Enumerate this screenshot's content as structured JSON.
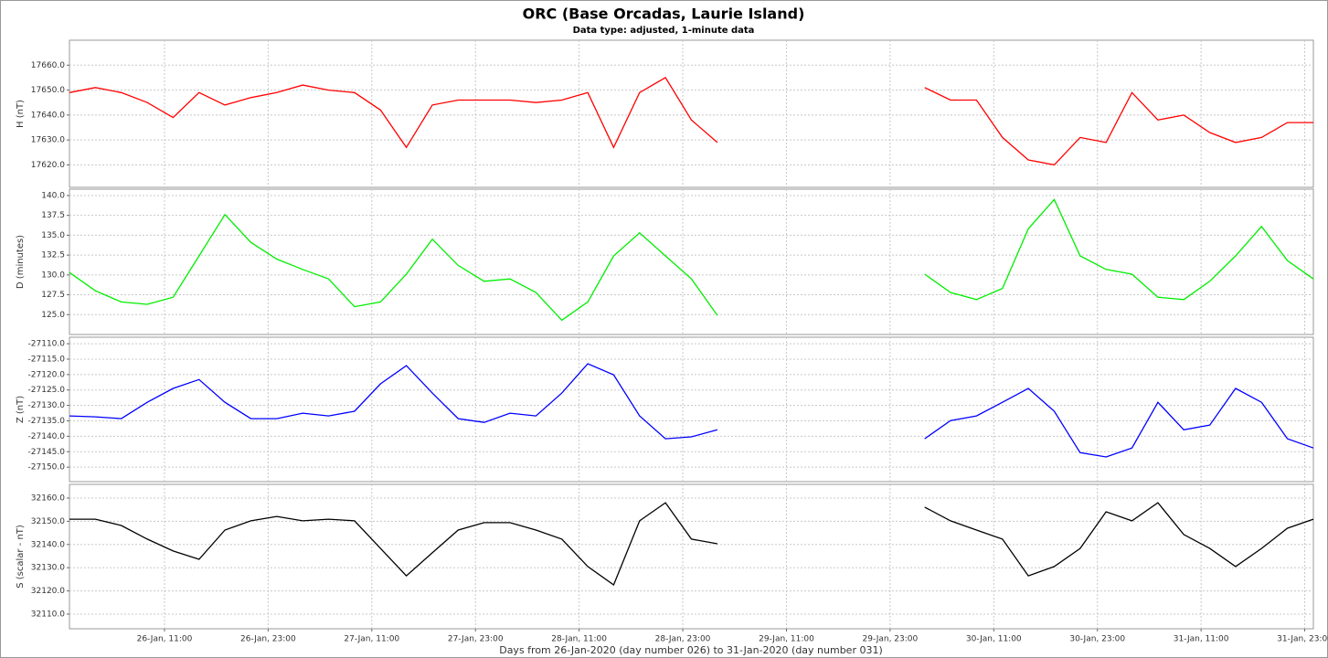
{
  "chart_data": {
    "type": "line",
    "title": "ORC (Base Orcadas, Laurie Island)",
    "subtitle": "Data type: adjusted, 1-minute data",
    "x_label": "Days from 26-Jan-2020 (day number 026) to 31-Jan-2020 (day number 031)",
    "grid": true,
    "x": [
      0,
      3,
      6,
      9,
      12,
      15,
      18,
      21,
      24,
      27,
      30,
      33,
      36,
      39,
      42,
      45,
      48,
      51,
      54,
      57,
      60,
      63,
      66,
      69,
      72,
      75,
      78,
      81,
      84,
      87,
      90,
      93,
      96,
      99,
      102,
      105,
      108,
      111,
      114,
      117,
      120,
      123,
      126,
      129,
      132,
      135,
      138,
      141,
      144
    ],
    "xlim": [
      0,
      144
    ],
    "xticks": [
      {
        "value": 11,
        "label": "26-Jan, 11:00"
      },
      {
        "value": 23,
        "label": "26-Jan, 23:00"
      },
      {
        "value": 35,
        "label": "27-Jan, 11:00"
      },
      {
        "value": 47,
        "label": "27-Jan, 23:00"
      },
      {
        "value": 59,
        "label": "28-Jan, 11:00"
      },
      {
        "value": 71,
        "label": "28-Jan, 23:00"
      },
      {
        "value": 83,
        "label": "29-Jan, 11:00"
      },
      {
        "value": 95,
        "label": "29-Jan, 23:00"
      },
      {
        "value": 107,
        "label": "30-Jan, 11:00"
      },
      {
        "value": 119,
        "label": "30-Jan, 23:00"
      },
      {
        "value": 131,
        "label": "31-Jan, 11:00"
      },
      {
        "value": 143,
        "label": "31-Jan, 23:00"
      }
    ],
    "panels": [
      {
        "y_label": "H (nT)",
        "color": "#ff0000",
        "ylim": [
          17611,
          17670
        ],
        "yticks": [
          {
            "value": 17620,
            "label": "17620.0"
          },
          {
            "value": 17630,
            "label": "17630.0"
          },
          {
            "value": 17640,
            "label": "17640.0"
          },
          {
            "value": 17650,
            "label": "17650.0"
          },
          {
            "value": 17660,
            "label": "17660.0"
          }
        ],
        "values": [
          17649,
          17651,
          17649,
          17645,
          17639,
          17649,
          17644,
          17647,
          17649,
          17652,
          17650,
          17649,
          17642,
          17627,
          17644,
          17646,
          17646,
          17646,
          17645,
          17646,
          17649,
          17627,
          17649,
          17655,
          17638,
          17629,
          null,
          null,
          null,
          null,
          null,
          null,
          null,
          17651,
          17646,
          17646,
          17631,
          17622,
          17620,
          17631,
          17629,
          17649,
          17638,
          17640,
          17633,
          17629,
          17631,
          17637,
          17637
        ]
      },
      {
        "y_label": "D (minutes)",
        "color": "#00ee00",
        "ylim": [
          122.5,
          140.8
        ],
        "yticks": [
          {
            "value": 125,
            "label": "125.0"
          },
          127.5,
          {
            "value": 130,
            "label": "130.0"
          },
          132.5,
          {
            "value": 135,
            "label": "135.0"
          },
          137.5,
          {
            "value": 140,
            "label": "140.0"
          }
        ],
        "values": [
          130.3,
          128.0,
          126.6,
          126.3,
          127.2,
          132.4,
          137.6,
          134.1,
          132.0,
          130.7,
          129.5,
          126.0,
          126.6,
          130.1,
          134.5,
          131.2,
          129.2,
          129.5,
          127.8,
          124.3,
          126.6,
          132.4,
          135.3,
          132.4,
          129.5,
          124.9,
          null,
          null,
          null,
          null,
          null,
          null,
          null,
          130.1,
          127.8,
          126.9,
          128.3,
          135.8,
          139.5,
          132.4,
          130.7,
          130.1,
          127.2,
          126.9,
          129.2,
          132.4,
          136.1,
          131.8,
          129.5
        ]
      },
      {
        "y_label": "Z (nT)",
        "color": "#0000ff",
        "ylim": [
          -27154.7,
          -27107.9
        ],
        "yticks": [
          {
            "value": -27150,
            "label": "-27150.0"
          },
          {
            "value": -27145,
            "label": "-27145.0"
          },
          {
            "value": -27140,
            "label": "-27140.0"
          },
          {
            "value": -27135,
            "label": "-27135.0"
          },
          {
            "value": -27130,
            "label": "-27130.0"
          },
          {
            "value": -27125,
            "label": "-27125.0"
          },
          {
            "value": -27120,
            "label": "-27120.0"
          },
          {
            "value": -27115,
            "label": "-27115.0"
          },
          {
            "value": -27110,
            "label": "-27110.0"
          }
        ],
        "values": [
          -27133.4,
          -27133.7,
          -27134.3,
          -27129.0,
          -27124.5,
          -27121.6,
          -27129.0,
          -27134.3,
          -27134.3,
          -27132.5,
          -27133.4,
          -27131.9,
          -27123.0,
          -27117.1,
          -27126.0,
          -27134.3,
          -27135.5,
          -27132.5,
          -27133.4,
          -27126.0,
          -27116.5,
          -27120.1,
          -27133.4,
          -27140.8,
          -27140.2,
          -27137.9,
          null,
          null,
          null,
          null,
          null,
          null,
          null,
          -27140.8,
          -27134.9,
          -27133.4,
          -27129.0,
          -27124.5,
          -27131.9,
          -27145.3,
          -27146.7,
          -27143.8,
          -27129.0,
          -27137.9,
          -27136.4,
          -27124.5,
          -27129.0,
          -27140.8,
          -27143.8
        ]
      },
      {
        "y_label": "S (scalar - nT)",
        "color": "#000000",
        "ylim": [
          32103.7,
          32165.9
        ],
        "yticks": [
          {
            "value": 32110,
            "label": "32110.0"
          },
          {
            "value": 32120,
            "label": "32120.0"
          },
          {
            "value": 32130,
            "label": "32130.0"
          },
          {
            "value": 32140,
            "label": "32140.0"
          },
          {
            "value": 32150,
            "label": "32150.0"
          },
          {
            "value": 32160,
            "label": "32160.0"
          }
        ],
        "values": [
          32150.9,
          32150.9,
          32148.2,
          32142.3,
          32137.2,
          32133.6,
          32146.2,
          32150.2,
          32152.1,
          32150.2,
          32150.9,
          32150.2,
          32138.3,
          32126.5,
          32136.4,
          32146.2,
          32149.4,
          32149.4,
          32146.2,
          32142.3,
          32130.5,
          32122.6,
          32150.2,
          32158.0,
          32142.3,
          32140.3,
          null,
          null,
          null,
          null,
          null,
          null,
          null,
          32156.1,
          32150.2,
          32146.2,
          32142.3,
          32126.5,
          32130.5,
          32138.3,
          32154.1,
          32150.2,
          32158.0,
          32144.3,
          32138.3,
          32130.5,
          32138.3,
          32147.0,
          32150.9
        ]
      }
    ]
  }
}
